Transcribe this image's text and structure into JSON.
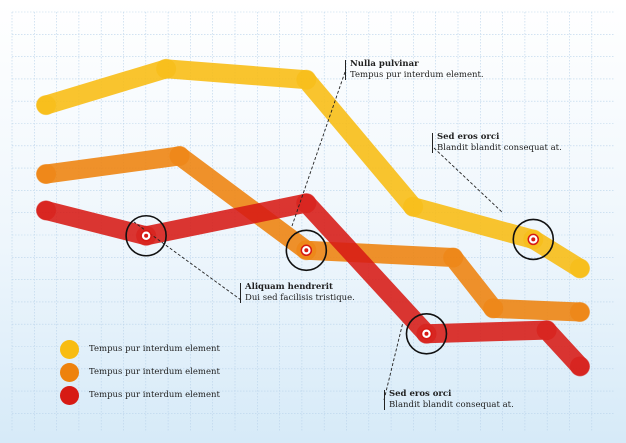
{
  "chart_data": {
    "type": "line",
    "title": "",
    "xlabel": "",
    "ylabel": "",
    "grid": true,
    "legend_placement": "bottom-left",
    "x": [
      0,
      1,
      2,
      3,
      4,
      5,
      6,
      7,
      8
    ],
    "series": [
      {
        "name": "Tempus pur interdum element",
        "color": "#f8bc11",
        "points": [
          [
            0,
            8.4
          ],
          [
            1.8,
            9.4
          ],
          [
            3.9,
            9.1
          ],
          [
            5.5,
            5.6
          ],
          [
            7.3,
            4.7
          ],
          [
            8,
            3.9
          ]
        ]
      },
      {
        "name": "Tempus pur interdum element",
        "color": "#ee820d",
        "points": [
          [
            0,
            6.5
          ],
          [
            2,
            7.0
          ],
          [
            3.9,
            4.4
          ],
          [
            6.1,
            4.2
          ],
          [
            6.7,
            2.8
          ],
          [
            8,
            2.7
          ]
        ]
      },
      {
        "name": "Tempus pur interdum element",
        "color": "#d71a14",
        "points": [
          [
            0,
            5.5
          ],
          [
            1.5,
            4.8
          ],
          [
            3.9,
            5.7
          ],
          [
            5.7,
            2.1
          ],
          [
            7.5,
            2.2
          ],
          [
            8,
            1.2
          ]
        ]
      }
    ]
  },
  "annotations": [
    {
      "title": "Nulla pulvinar",
      "text": "Tempus pur interdum element."
    },
    {
      "title": "Sed eros orci",
      "text": "Blandit blandit consequat at."
    },
    {
      "title": "Aliquam hendrerit",
      "text": "Dui sed facilisis tristique."
    },
    {
      "title": "Sed eros orci",
      "text": "Blandit blandit consequat at."
    }
  ],
  "highlights": [
    {
      "series": 2,
      "point": 1
    },
    {
      "series": 1,
      "point": 2
    },
    {
      "series": 0,
      "point": 4
    },
    {
      "series": 2,
      "point": 3
    }
  ]
}
